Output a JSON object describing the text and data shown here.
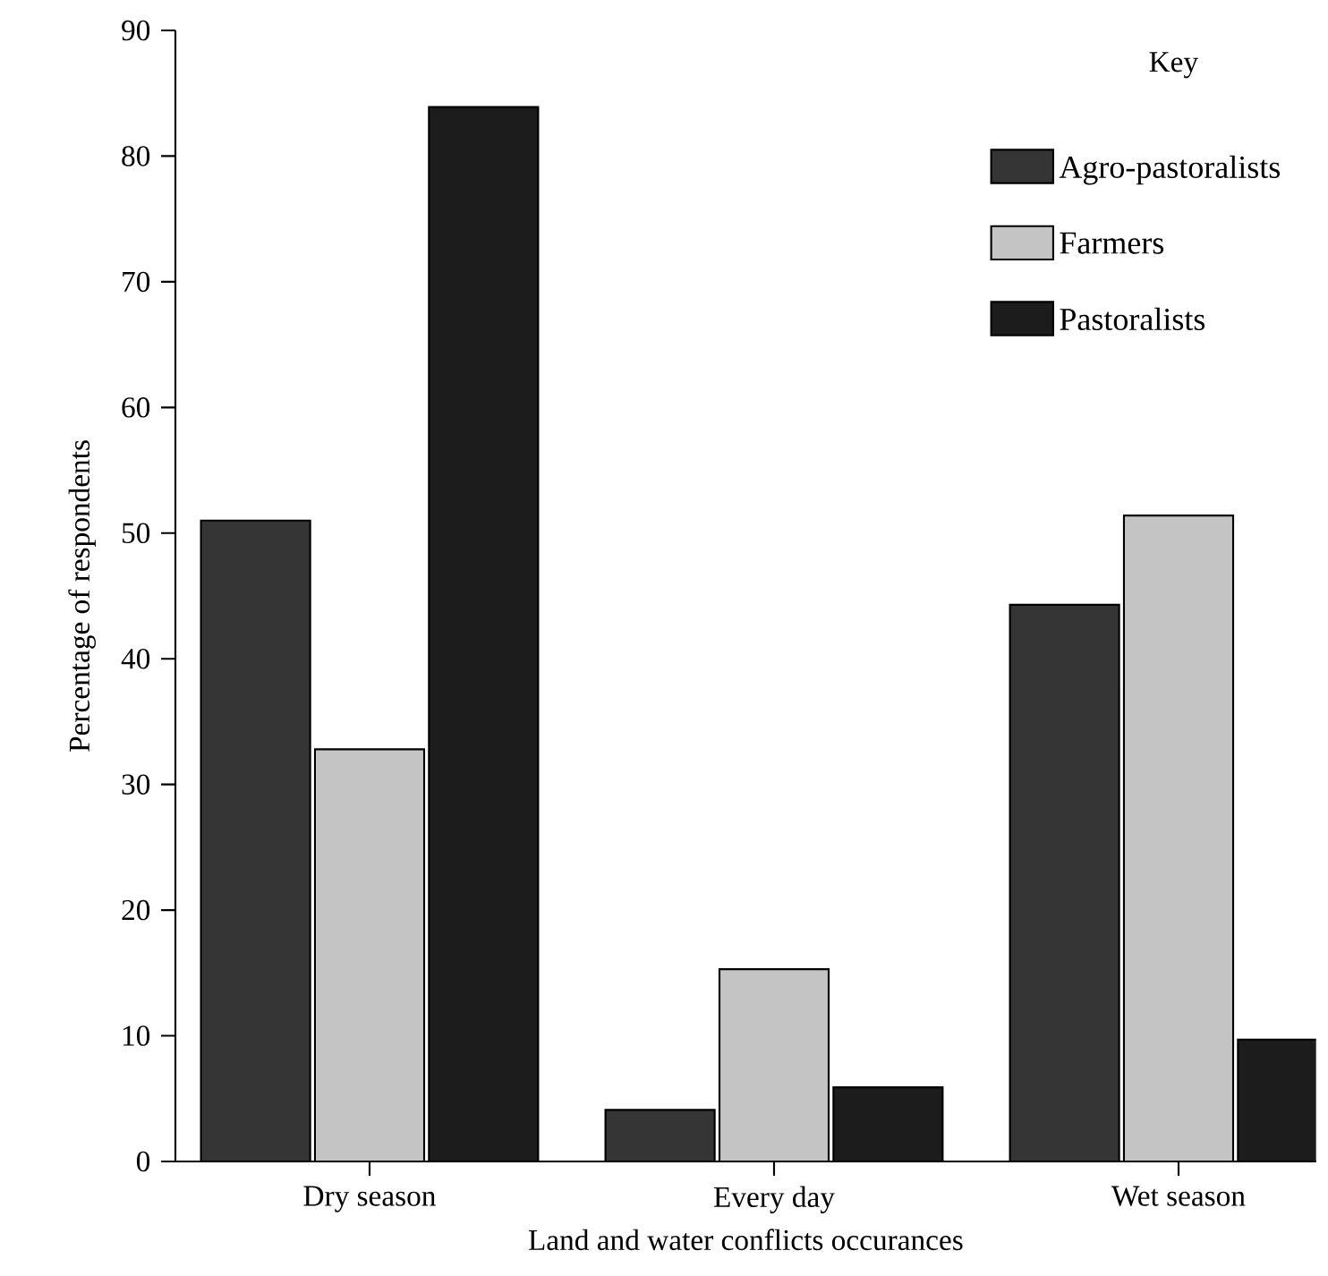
{
  "chart_data": {
    "type": "bar",
    "xlabel": "Land and water conflicts occurances",
    "ylabel": "Percentage of respondents",
    "legend_title": "Key",
    "legend": "top right",
    "categories": [
      "Dry season",
      "Every day",
      "Wet season"
    ],
    "series": [
      {
        "name": "Agro-pastoralists",
        "color": "#353535",
        "values": [
          51,
          4.1,
          44.3
        ]
      },
      {
        "name": "Farmers",
        "color": "#c4c4c4",
        "values": [
          32.8,
          15.3,
          51.4
        ]
      },
      {
        "name": "Pastoralists",
        "color": "#1c1c1c",
        "values": [
          83.9,
          5.9,
          9.7
        ]
      }
    ],
    "ylim": [
      0,
      90
    ],
    "yticks": [
      0,
      10,
      20,
      30,
      40,
      50,
      60,
      70,
      80,
      90
    ],
    "grid": false
  }
}
